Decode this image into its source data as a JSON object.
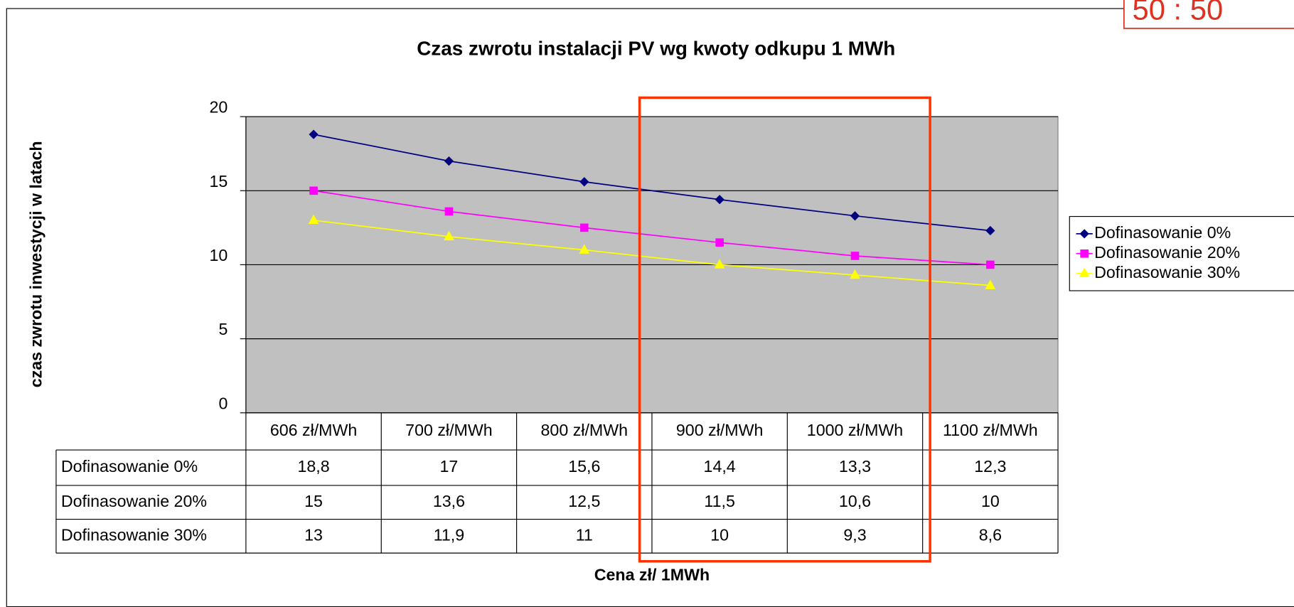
{
  "chart_data": {
    "type": "line",
    "title": "Czas zwrotu instalacji PV wg kwoty odkupu 1 MWh",
    "xlabel": "Cena zł/ 1MWh",
    "ylabel": "czas zwrotu inwestycji w latach",
    "annotation": "50 : 50",
    "categories": [
      "606 zł/MWh",
      "700 zł/MWh",
      "800 zł/MWh",
      "900 zł/MWh",
      "1000 zł/MWh",
      "1100 zł/MWh"
    ],
    "series": [
      {
        "name": "Dofinasowanie 0%",
        "color": "#000080",
        "marker": "diamond",
        "values": [
          18.8,
          17,
          15.6,
          14.4,
          13.3,
          12.3
        ],
        "value_labels": [
          "18,8",
          "17",
          "15,6",
          "14,4",
          "13,3",
          "12,3"
        ]
      },
      {
        "name": "Dofinasowanie 20%",
        "color": "#ff00ff",
        "marker": "square",
        "values": [
          15,
          13.6,
          12.5,
          11.5,
          10.6,
          10
        ],
        "value_labels": [
          "15",
          "13,6",
          "12,5",
          "11,5",
          "10,6",
          "10"
        ]
      },
      {
        "name": "Dofinasowanie 30%",
        "color": "#ffff00",
        "marker": "triangle",
        "values": [
          13,
          11.9,
          11,
          10,
          9.3,
          8.6
        ],
        "value_labels": [
          "13",
          "11,9",
          "11",
          "10",
          "9,3",
          "8,6"
        ]
      }
    ],
    "ylim": [
      0,
      20
    ],
    "yticks": [
      0,
      5,
      10,
      15,
      20
    ],
    "grid": true,
    "legend": "right",
    "plot_background": "#c0c0c0"
  }
}
